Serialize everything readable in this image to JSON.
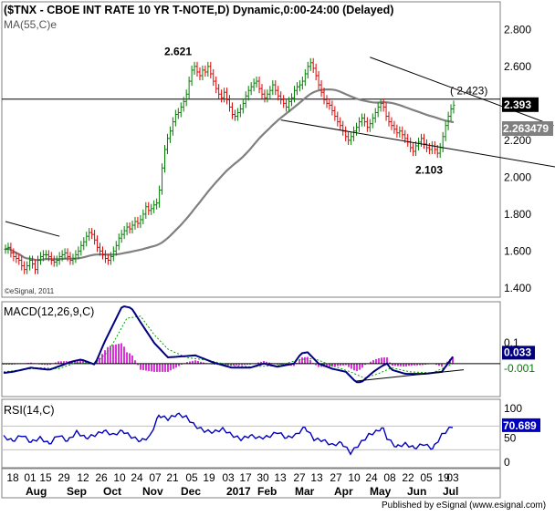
{
  "header": {
    "title": "($TNX - CBOE INT RATE 10 YR T-NOTE,D) Dynamic,0:00-24:00 (Delayed)",
    "ma_label": "MA(55,C)e",
    "watermark": "©eSignal, 2011"
  },
  "footer": {
    "published": "Published by eSignal (www.esignal.com)"
  },
  "chart_data": [
    {
      "type": "candlestick",
      "panel": "price",
      "ylim": [
        1.35,
        2.95
      ],
      "yticks": [
        "2.800",
        "2.600",
        "2.400",
        "2.200",
        "2.000",
        "1.800",
        "1.600",
        "1.400"
      ],
      "close": [
        1.61,
        1.62,
        1.59,
        1.57,
        1.56,
        1.55,
        1.52,
        1.5,
        1.52,
        1.55,
        1.53,
        1.5,
        1.55,
        1.57,
        1.58,
        1.58,
        1.57,
        1.55,
        1.54,
        1.55,
        1.57,
        1.58,
        1.59,
        1.57,
        1.55,
        1.56,
        1.58,
        1.6,
        1.63,
        1.65,
        1.68,
        1.7,
        1.69,
        1.66,
        1.62,
        1.6,
        1.58,
        1.56,
        1.55,
        1.57,
        1.6,
        1.63,
        1.67,
        1.69,
        1.71,
        1.73,
        1.72,
        1.74,
        1.76,
        1.75,
        1.77,
        1.8,
        1.84,
        1.82,
        1.83,
        1.85,
        1.86,
        1.93,
        2.05,
        2.15,
        2.21,
        2.25,
        2.3,
        2.34,
        2.35,
        2.38,
        2.41,
        2.45,
        2.52,
        2.58,
        2.6,
        2.57,
        2.55,
        2.58,
        2.57,
        2.6,
        2.56,
        2.52,
        2.48,
        2.45,
        2.43,
        2.46,
        2.42,
        2.38,
        2.34,
        2.33,
        2.35,
        2.37,
        2.4,
        2.44,
        2.47,
        2.49,
        2.51,
        2.52,
        2.48,
        2.45,
        2.43,
        2.45,
        2.47,
        2.5,
        2.47,
        2.44,
        2.42,
        2.4,
        2.38,
        2.41,
        2.43,
        2.47,
        2.49,
        2.5,
        2.52,
        2.56,
        2.6,
        2.62,
        2.59,
        2.55,
        2.5,
        2.46,
        2.42,
        2.4,
        2.39,
        2.36,
        2.33,
        2.3,
        2.28,
        2.25,
        2.22,
        2.2,
        2.22,
        2.25,
        2.27,
        2.3,
        2.32,
        2.3,
        2.27,
        2.29,
        2.32,
        2.35,
        2.38,
        2.4,
        2.38,
        2.33,
        2.3,
        2.28,
        2.26,
        2.24,
        2.25,
        2.23,
        2.21,
        2.19,
        2.16,
        2.14,
        2.17,
        2.19,
        2.21,
        2.18,
        2.16,
        2.15,
        2.17,
        2.15,
        2.13,
        2.16,
        2.22,
        2.28,
        2.33,
        2.37,
        2.39
      ],
      "labels": {
        "high": "2.621",
        "low": "2.103",
        "target": "( 2.423)",
        "last_price": "2.393",
        "ma_value": "2.263479"
      },
      "levels": {
        "horizontal": 2.423,
        "ma_last": 2.2635
      },
      "trendlines": [
        {
          "from": [
            0,
            1.76
          ],
          "to": [
            20,
            1.68
          ]
        },
        {
          "from": [
            135,
            2.65
          ],
          "to": [
            203,
            2.28
          ]
        },
        {
          "from": [
            102,
            2.31
          ],
          "to": [
            210,
            2.04
          ]
        }
      ]
    },
    {
      "type": "line",
      "panel": "macd",
      "title": "MACD(12,26,9,C)",
      "ylim": [
        -0.16,
        0.3
      ],
      "yticks": [
        "0.1"
      ],
      "current": {
        "macd": "0.033",
        "signal": "-0.001"
      },
      "macd_keypoints": [
        [
          0,
          -0.045
        ],
        [
          10,
          -0.04
        ],
        [
          30,
          -0.02
        ],
        [
          50,
          -0.03
        ],
        [
          75,
          0.01
        ],
        [
          85,
          0.02
        ],
        [
          100,
          -0.005
        ],
        [
          110,
          0.1
        ],
        [
          130,
          0.28
        ],
        [
          140,
          0.27
        ],
        [
          150,
          0.2
        ],
        [
          165,
          0.1
        ],
        [
          180,
          0.03
        ],
        [
          195,
          0.035
        ],
        [
          210,
          0.04
        ],
        [
          230,
          0.005
        ],
        [
          250,
          -0.02
        ],
        [
          270,
          -0.02
        ],
        [
          285,
          0.0
        ],
        [
          300,
          -0.015
        ],
        [
          318,
          0.0
        ],
        [
          326,
          0.05
        ],
        [
          333,
          0.055
        ],
        [
          345,
          0.0
        ],
        [
          360,
          -0.025
        ],
        [
          375,
          -0.04
        ],
        [
          386,
          -0.09
        ],
        [
          392,
          -0.09
        ],
        [
          405,
          -0.04
        ],
        [
          415,
          -0.01
        ],
        [
          420,
          0.0
        ],
        [
          425,
          -0.03
        ],
        [
          440,
          -0.05
        ],
        [
          460,
          -0.05
        ],
        [
          480,
          -0.04
        ],
        [
          492,
          0.033
        ]
      ],
      "signal_keypoints": [
        [
          0,
          -0.04
        ],
        [
          20,
          -0.03
        ],
        [
          40,
          -0.02
        ],
        [
          60,
          -0.025
        ],
        [
          80,
          0.005
        ],
        [
          100,
          0.0
        ],
        [
          115,
          0.06
        ],
        [
          135,
          0.22
        ],
        [
          150,
          0.23
        ],
        [
          165,
          0.14
        ],
        [
          180,
          0.07
        ],
        [
          200,
          0.03
        ],
        [
          225,
          0.015
        ],
        [
          250,
          -0.01
        ],
        [
          270,
          -0.015
        ],
        [
          300,
          -0.01
        ],
        [
          325,
          0.02
        ],
        [
          340,
          0.025
        ],
        [
          360,
          -0.01
        ],
        [
          380,
          -0.04
        ],
        [
          395,
          -0.07
        ],
        [
          410,
          -0.05
        ],
        [
          425,
          -0.02
        ],
        [
          445,
          -0.04
        ],
        [
          470,
          -0.045
        ],
        [
          492,
          -0.001
        ]
      ],
      "divergence_line": {
        "from": [
          386,
          -0.085
        ],
        "to": [
          508,
          -0.03
        ]
      }
    },
    {
      "type": "line",
      "panel": "rsi",
      "title": "RSI(14,C)",
      "ylim": [
        0,
        115
      ],
      "yticks": [
        "100",
        "50",
        "0"
      ],
      "current": "70.689",
      "keypoints": [
        [
          0,
          52
        ],
        [
          10,
          45
        ],
        [
          20,
          55
        ],
        [
          30,
          43
        ],
        [
          40,
          50
        ],
        [
          50,
          40
        ],
        [
          60,
          55
        ],
        [
          70,
          45
        ],
        [
          80,
          60
        ],
        [
          90,
          50
        ],
        [
          100,
          55
        ],
        [
          110,
          62
        ],
        [
          120,
          55
        ],
        [
          130,
          62
        ],
        [
          140,
          52
        ],
        [
          150,
          45
        ],
        [
          160,
          52
        ],
        [
          170,
          88
        ],
        [
          180,
          82
        ],
        [
          190,
          90
        ],
        [
          200,
          85
        ],
        [
          210,
          70
        ],
        [
          220,
          62
        ],
        [
          230,
          60
        ],
        [
          240,
          65
        ],
        [
          250,
          55
        ],
        [
          260,
          48
        ],
        [
          270,
          54
        ],
        [
          280,
          50
        ],
        [
          290,
          52
        ],
        [
          300,
          60
        ],
        [
          310,
          50
        ],
        [
          320,
          55
        ],
        [
          330,
          68
        ],
        [
          340,
          48
        ],
        [
          350,
          46
        ],
        [
          360,
          38
        ],
        [
          370,
          42
        ],
        [
          380,
          25
        ],
        [
          390,
          40
        ],
        [
          400,
          55
        ],
        [
          410,
          62
        ],
        [
          415,
          68
        ],
        [
          420,
          50
        ],
        [
          430,
          35
        ],
        [
          440,
          40
        ],
        [
          450,
          33
        ],
        [
          460,
          40
        ],
        [
          470,
          32
        ],
        [
          480,
          55
        ],
        [
          490,
          68
        ],
        [
          493,
          70.7
        ]
      ]
    }
  ],
  "x_axis": {
    "day_labels": [
      "18",
      "01",
      "15",
      "29",
      "12",
      "26",
      "10",
      "24",
      "07",
      "21",
      "05",
      "19",
      "03",
      "17",
      "30",
      "13",
      "27",
      "13",
      "27",
      "10",
      "24",
      "08",
      "22",
      "05",
      "19",
      "03"
    ],
    "months": [
      "Aug",
      "Sep",
      "Oct",
      "Nov",
      "Dec",
      "2017",
      "Feb",
      "Mar",
      "Apr",
      "May",
      "Jun",
      "Jul"
    ]
  }
}
